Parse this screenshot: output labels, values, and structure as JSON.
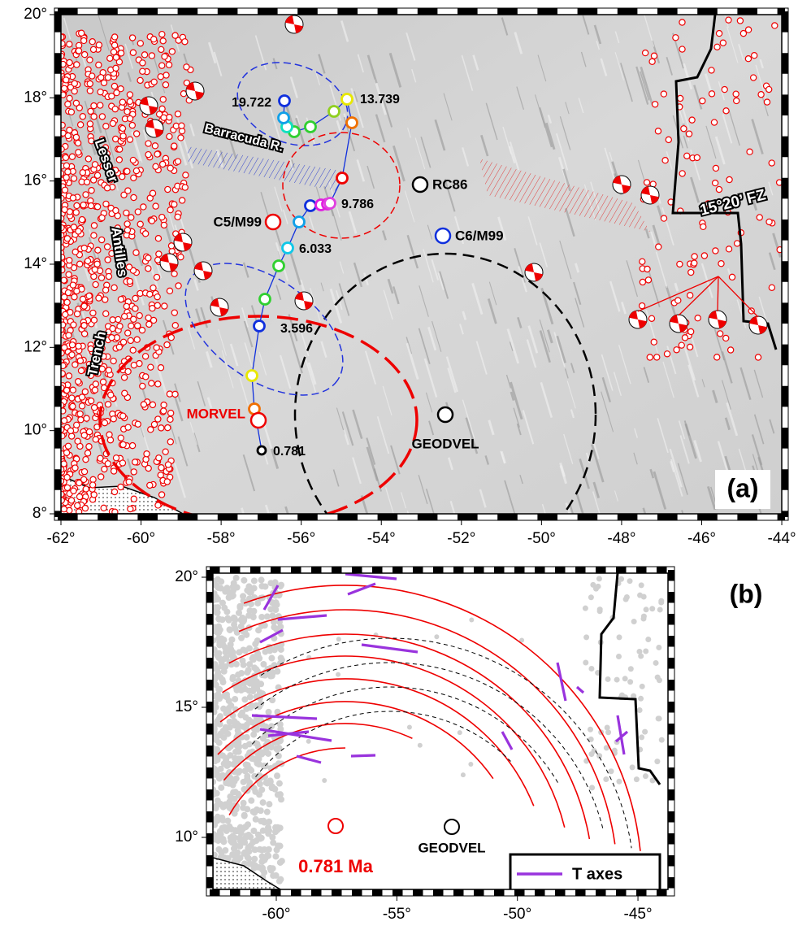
{
  "panel_a": {
    "x_ticks": [
      {
        "value": -62,
        "label": "-62°"
      },
      {
        "value": -60,
        "label": "-60°"
      },
      {
        "value": -58,
        "label": "-58°"
      },
      {
        "value": -56,
        "label": "-56°"
      },
      {
        "value": -54,
        "label": "-54°"
      },
      {
        "value": -52,
        "label": "-52°"
      },
      {
        "value": -50,
        "label": "-50°"
      },
      {
        "value": -48,
        "label": "-48°"
      },
      {
        "value": -46,
        "label": "-46°"
      },
      {
        "value": -44,
        "label": "-44°"
      }
    ],
    "y_ticks": [
      {
        "value": 8,
        "label": "8°"
      },
      {
        "value": 10,
        "label": "10°"
      },
      {
        "value": 12,
        "label": "12°"
      },
      {
        "value": 14,
        "label": "14°"
      },
      {
        "value": 16,
        "label": "16°"
      },
      {
        "value": 18,
        "label": "18°"
      },
      {
        "value": 20,
        "label": "20°"
      }
    ],
    "features": {
      "trench": [
        "Lesser",
        "Antilles",
        "Trench"
      ],
      "ridge": "Barracuda R.",
      "fracture_zone": "15°20’ FZ"
    },
    "poles": {
      "rc86": "RC86",
      "c6": "C6/M99",
      "c5": "C5/M99",
      "geodvel": "GEODVEL",
      "morvel": "MORVEL"
    },
    "ages": [
      "19.722",
      "13.739",
      "9.786",
      "6.033",
      "3.596",
      "0.781"
    ],
    "panel_label": "(a)"
  },
  "panel_b": {
    "x_ticks": [
      {
        "value": -60,
        "label": "-60°"
      },
      {
        "value": -55,
        "label": "-55°"
      },
      {
        "value": -50,
        "label": "-50°"
      },
      {
        "value": -45,
        "label": "-45°"
      }
    ],
    "y_ticks": [
      {
        "value": 10,
        "label": "10°"
      },
      {
        "value": 15,
        "label": "15°"
      },
      {
        "value": 20,
        "label": "20°"
      }
    ],
    "geodvel": "GEODVEL",
    "age_label": "0.781 Ma",
    "legend": "T axes",
    "panel_label": "(b)"
  }
}
